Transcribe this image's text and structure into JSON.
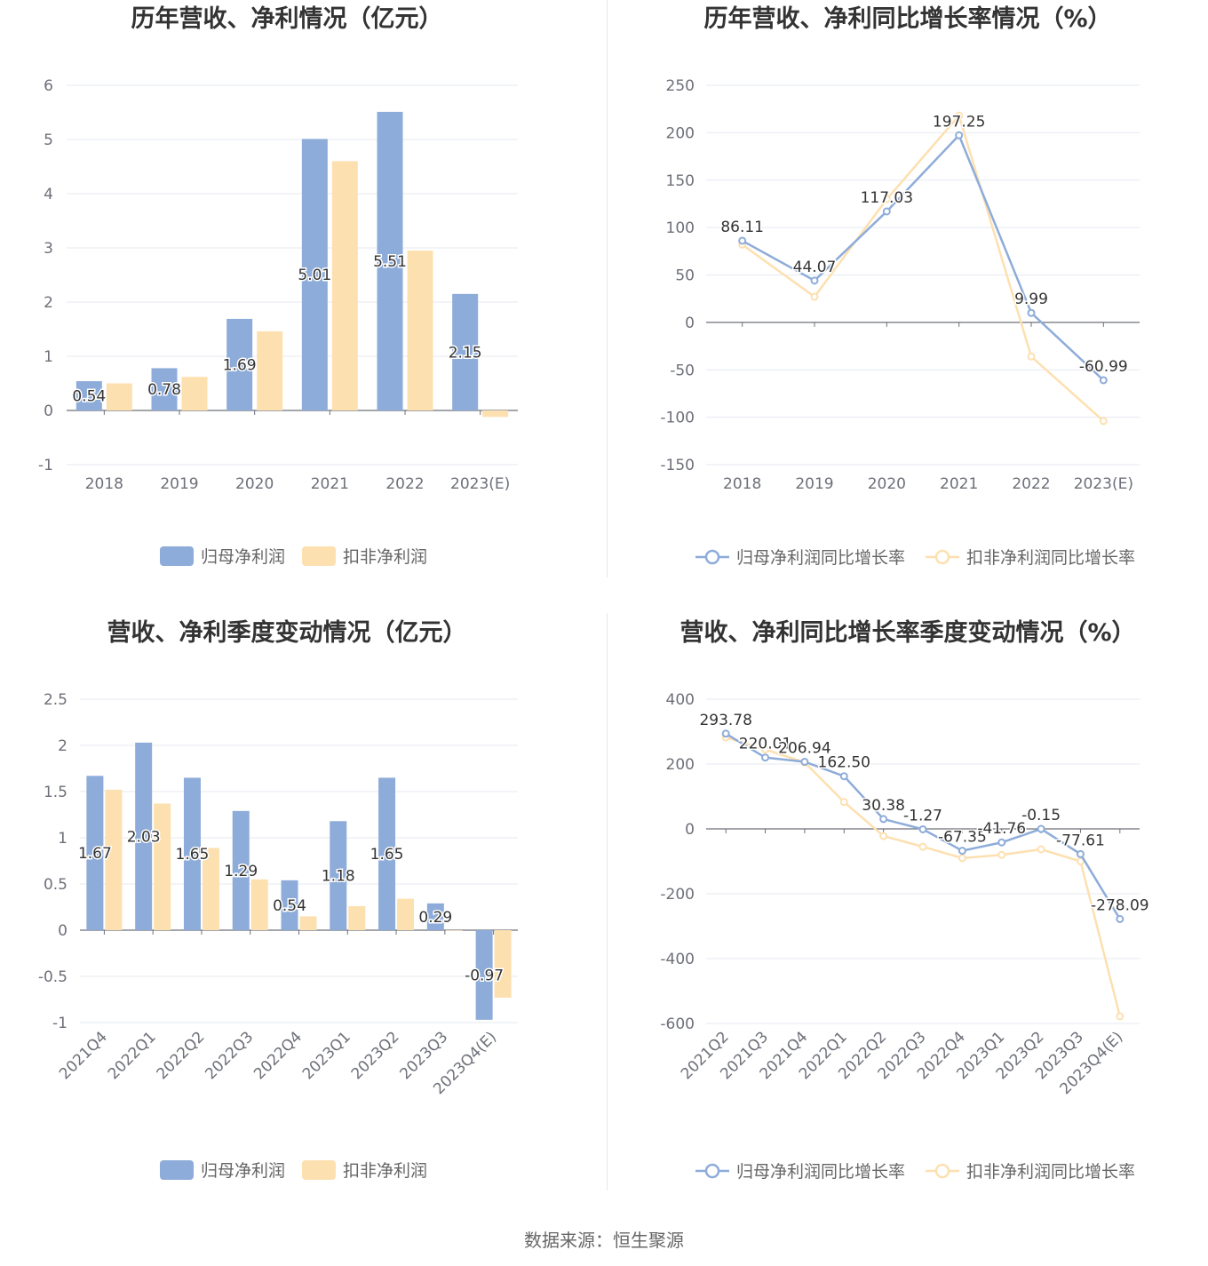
{
  "colors": {
    "primary": "#8eacd9",
    "secondary": "#fde0b0",
    "grid": "#e6e9f2",
    "axis": "#6e7079"
  },
  "source_text": "数据来源：恒生聚源",
  "chart_data": [
    {
      "type": "bar",
      "title": "历年营收、净利情况（亿元）",
      "categories": [
        "2018",
        "2019",
        "2020",
        "2021",
        "2022",
        "2023(E)"
      ],
      "series": [
        {
          "name": "归母净利润",
          "values": [
            0.54,
            0.78,
            1.69,
            5.01,
            5.51,
            2.15
          ]
        },
        {
          "name": "扣非净利润",
          "values": [
            0.5,
            0.62,
            1.46,
            4.6,
            2.95,
            -0.12
          ]
        }
      ],
      "data_labels": [
        "0.54",
        "0.78",
        "1.69",
        "5.01",
        "5.51",
        "2.15"
      ],
      "ylim": [
        -1,
        6
      ],
      "yticks": [
        -1,
        0,
        1,
        2,
        3,
        4,
        5,
        6
      ],
      "legend": "bottom",
      "grid": true
    },
    {
      "type": "line",
      "title": "历年营收、净利同比增长率情况（%）",
      "categories": [
        "2018",
        "2019",
        "2020",
        "2021",
        "2022",
        "2023(E)"
      ],
      "series": [
        {
          "name": "归母净利润同比增长率",
          "values": [
            86.11,
            44.07,
            117.03,
            197.25,
            9.99,
            -60.99
          ]
        },
        {
          "name": "扣非净利润同比增长率",
          "values": [
            82,
            27,
            130,
            218,
            -36,
            -104
          ]
        }
      ],
      "data_labels": [
        "86.11",
        "44.07",
        "117.03",
        "197.25",
        "9.99",
        "-60.99"
      ],
      "ylim": [
        -150,
        250
      ],
      "yticks": [
        -150,
        -100,
        -50,
        0,
        50,
        100,
        150,
        200,
        250
      ],
      "legend": "bottom",
      "grid": true
    },
    {
      "type": "bar",
      "title": "营收、净利季度变动情况（亿元）",
      "categories": [
        "2021Q4",
        "2022Q1",
        "2022Q2",
        "2022Q3",
        "2022Q4",
        "2023Q1",
        "2023Q2",
        "2023Q3",
        "2023Q4(E)"
      ],
      "series": [
        {
          "name": "归母净利润",
          "values": [
            1.67,
            2.03,
            1.65,
            1.29,
            0.54,
            1.18,
            1.65,
            0.29,
            -0.97
          ]
        },
        {
          "name": "扣非净利润",
          "values": [
            1.52,
            1.37,
            0.89,
            0.55,
            0.15,
            0.26,
            0.34,
            0.0,
            -0.73
          ]
        }
      ],
      "data_labels": [
        "1.67",
        "2.03",
        "1.65",
        "1.29",
        "0.54",
        "1.18",
        "1.65",
        "0.29",
        "-0.97"
      ],
      "ylim": [
        -1,
        2.5
      ],
      "yticks": [
        -1,
        -0.5,
        0,
        0.5,
        1,
        1.5,
        2,
        2.5
      ],
      "legend": "bottom",
      "grid": true
    },
    {
      "type": "line",
      "title": "营收、净利同比增长率季度变动情况（%）",
      "categories": [
        "2021Q2",
        "2021Q3",
        "2021Q4",
        "2022Q1",
        "2022Q2",
        "2022Q3",
        "2022Q4",
        "2023Q1",
        "2023Q2",
        "2023Q3",
        "2023Q4(E)"
      ],
      "series": [
        {
          "name": "归母净利润同比增长率",
          "values": [
            293.78,
            220.01,
            206.94,
            162.5,
            30.38,
            -1.27,
            -67.35,
            -41.76,
            -0.15,
            -77.61,
            -278.09
          ]
        },
        {
          "name": "扣非净利润同比增长率",
          "values": [
            282,
            245,
            205,
            83,
            -22,
            -55,
            -90,
            -80,
            -63,
            -100,
            -578
          ]
        }
      ],
      "data_labels": [
        "293.78",
        "220.01",
        "206.94",
        "162.50",
        "30.38",
        "-1.27",
        "-67.35",
        "-41.76",
        "-0.15",
        "-77.61",
        "-278.09"
      ],
      "ylim": [
        -600,
        400
      ],
      "yticks": [
        -600,
        -400,
        -200,
        0,
        200,
        400
      ],
      "legend": "bottom",
      "grid": true
    }
  ]
}
